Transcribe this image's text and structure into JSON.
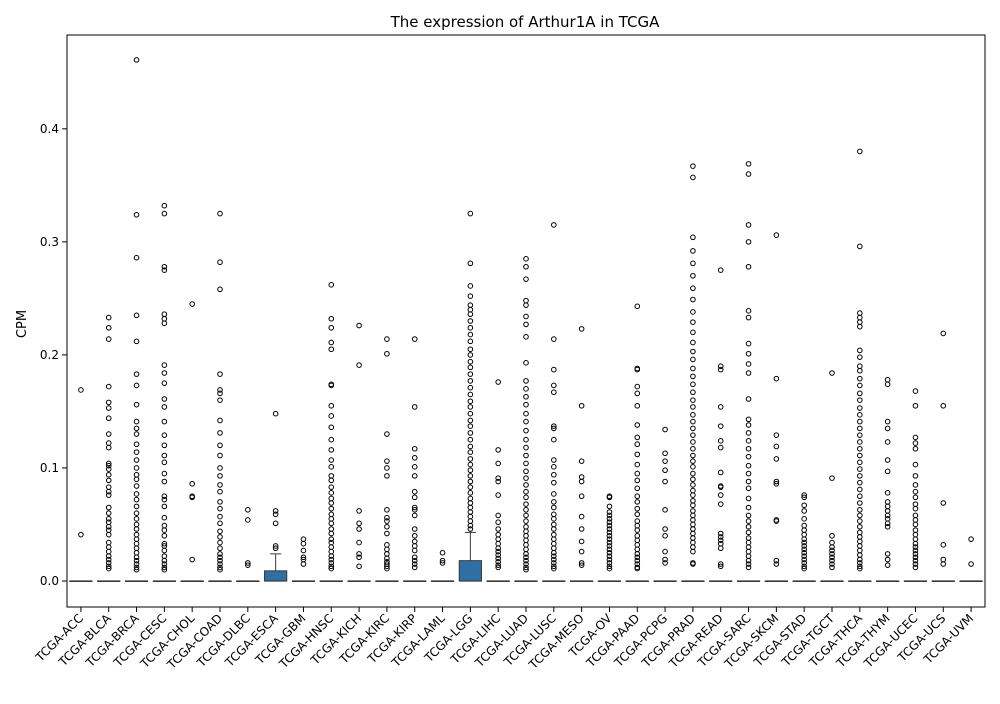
{
  "chart_data": {
    "type": "box",
    "title": "The expression of Arthur1A in TCGA",
    "xlabel": "",
    "ylabel": "CPM",
    "ylim": [
      -0.023,
      0.483
    ],
    "yticks": [
      0.0,
      0.1,
      0.2,
      0.3,
      0.4
    ],
    "ytick_labels": [
      "0.0",
      "0.1",
      "0.2",
      "0.3",
      "0.4"
    ],
    "box_color": "#2f6fa3",
    "grid": false,
    "legend": "none",
    "categories": [
      "TCGA-ACC",
      "TCGA-BLCA",
      "TCGA-BRCA",
      "TCGA-CESC",
      "TCGA-CHOL",
      "TCGA-COAD",
      "TCGA-DLBC",
      "TCGA-ESCA",
      "TCGA-GBM",
      "TCGA-HNSC",
      "TCGA-KICH",
      "TCGA-KIRC",
      "TCGA-KIRP",
      "TCGA-LAML",
      "TCGA-LGG",
      "TCGA-LIHC",
      "TCGA-LUAD",
      "TCGA-LUSC",
      "TCGA-MESO",
      "TCGA-OV",
      "TCGA-PAAD",
      "TCGA-PCPG",
      "TCGA-PRAD",
      "TCGA-READ",
      "TCGA-SARC",
      "TCGA-SKCM",
      "TCGA-STAD",
      "TCGA-TGCT",
      "TCGA-THCA",
      "TCGA-THYM",
      "TCGA-UCEC",
      "TCGA-UCS",
      "TCGA-UVM"
    ],
    "boxes": [
      {
        "q1": 0,
        "median": 0,
        "q3": 0,
        "whisker_low": 0,
        "whisker_high": 0,
        "outliers": [
          0.169,
          0.041
        ]
      },
      {
        "q1": 0,
        "median": 0,
        "q3": 0,
        "whisker_low": 0,
        "whisker_high": 0,
        "outliers": [
          0.233,
          0.224,
          0.214,
          0.172,
          0.158,
          0.153,
          0.144,
          0.13,
          0.122,
          0.118,
          0.104,
          0.102,
          0.099,
          0.094,
          0.089,
          0.083,
          0.079,
          0.076,
          0.065,
          0.06,
          0.055,
          0.052,
          0.048,
          0.045,
          0.041,
          0.034,
          0.03,
          0.026,
          0.022,
          0.019,
          0.016,
          0.013,
          0.011
        ]
      },
      {
        "q1": 0,
        "median": 0,
        "q3": 0,
        "whisker_low": 0,
        "whisker_high": 0,
        "outliers": [
          0.461,
          0.324,
          0.286,
          0.235,
          0.212,
          0.183,
          0.173,
          0.156,
          0.141,
          0.135,
          0.13,
          0.121,
          0.114,
          0.107,
          0.1,
          0.094,
          0.09,
          0.084,
          0.077,
          0.072,
          0.066,
          0.06,
          0.055,
          0.05,
          0.046,
          0.041,
          0.037,
          0.033,
          0.029,
          0.025,
          0.021,
          0.018,
          0.015,
          0.012,
          0.01
        ]
      },
      {
        "q1": 0,
        "median": 0,
        "q3": 0,
        "whisker_low": 0,
        "whisker_high": 0,
        "outliers": [
          0.332,
          0.325,
          0.278,
          0.275,
          0.236,
          0.232,
          0.228,
          0.191,
          0.184,
          0.175,
          0.161,
          0.154,
          0.141,
          0.129,
          0.12,
          0.111,
          0.105,
          0.095,
          0.088,
          0.075,
          0.072,
          0.066,
          0.056,
          0.049,
          0.045,
          0.04,
          0.033,
          0.031,
          0.027,
          0.022,
          0.018,
          0.015,
          0.012,
          0.01
        ]
      },
      {
        "q1": 0,
        "median": 0,
        "q3": 0,
        "whisker_low": 0,
        "whisker_high": 0,
        "outliers": [
          0.245,
          0.086,
          0.075,
          0.074,
          0.019
        ]
      },
      {
        "q1": 0,
        "median": 0,
        "q3": 0,
        "whisker_low": 0,
        "whisker_high": 0,
        "outliers": [
          0.325,
          0.282,
          0.258,
          0.183,
          0.169,
          0.166,
          0.16,
          0.142,
          0.131,
          0.12,
          0.111,
          0.1,
          0.093,
          0.085,
          0.079,
          0.07,
          0.064,
          0.057,
          0.051,
          0.044,
          0.039,
          0.034,
          0.029,
          0.024,
          0.021,
          0.018,
          0.015,
          0.012,
          0.01
        ]
      },
      {
        "q1": 0,
        "median": 0,
        "q3": 0,
        "whisker_low": 0,
        "whisker_high": 0,
        "outliers": [
          0.063,
          0.054,
          0.016,
          0.014
        ]
      },
      {
        "q1": 0,
        "median": 0,
        "q3": 0.009,
        "whisker_low": 0,
        "whisker_high": 0.024,
        "outliers": [
          0.148,
          0.062,
          0.059,
          0.051,
          0.031,
          0.029
        ]
      },
      {
        "q1": 0,
        "median": 0,
        "q3": 0,
        "whisker_low": 0,
        "whisker_high": 0,
        "outliers": [
          0.037,
          0.033,
          0.027,
          0.021,
          0.019,
          0.015
        ]
      },
      {
        "q1": 0,
        "median": 0,
        "q3": 0,
        "whisker_low": 0,
        "whisker_high": 0,
        "outliers": [
          0.262,
          0.232,
          0.224,
          0.211,
          0.205,
          0.174,
          0.173,
          0.155,
          0.146,
          0.136,
          0.125,
          0.116,
          0.107,
          0.101,
          0.093,
          0.089,
          0.083,
          0.078,
          0.073,
          0.069,
          0.064,
          0.059,
          0.055,
          0.051,
          0.046,
          0.042,
          0.037,
          0.034,
          0.03,
          0.026,
          0.022,
          0.019,
          0.016,
          0.013,
          0.011
        ]
      },
      {
        "q1": 0,
        "median": 0,
        "q3": 0,
        "whisker_low": 0,
        "whisker_high": 0,
        "outliers": [
          0.226,
          0.191,
          0.062,
          0.051,
          0.046,
          0.034,
          0.024,
          0.021,
          0.013
        ]
      },
      {
        "q1": 0,
        "median": 0,
        "q3": 0,
        "whisker_low": 0,
        "whisker_high": 0,
        "outliers": [
          0.214,
          0.201,
          0.13,
          0.106,
          0.1,
          0.093,
          0.063,
          0.056,
          0.053,
          0.048,
          0.042,
          0.032,
          0.028,
          0.024,
          0.02,
          0.017,
          0.015,
          0.013,
          0.011
        ]
      },
      {
        "q1": 0,
        "median": 0,
        "q3": 0,
        "whisker_low": 0,
        "whisker_high": 0,
        "outliers": [
          0.214,
          0.154,
          0.117,
          0.109,
          0.101,
          0.093,
          0.079,
          0.074,
          0.065,
          0.063,
          0.058,
          0.046,
          0.04,
          0.035,
          0.031,
          0.027,
          0.021,
          0.018,
          0.015,
          0.012
        ]
      },
      {
        "q1": 0,
        "median": 0,
        "q3": 0,
        "whisker_low": 0,
        "whisker_high": 0,
        "outliers": [
          0.025,
          0.018,
          0.016
        ]
      },
      {
        "q1": 0,
        "median": 0,
        "q3": 0.018,
        "whisker_low": 0,
        "whisker_high": 0.043,
        "outliers": [
          0.325,
          0.281,
          0.261,
          0.252,
          0.244,
          0.24,
          0.236,
          0.23,
          0.224,
          0.218,
          0.212,
          0.205,
          0.2,
          0.194,
          0.189,
          0.183,
          0.177,
          0.171,
          0.165,
          0.159,
          0.154,
          0.148,
          0.142,
          0.137,
          0.131,
          0.125,
          0.119,
          0.114,
          0.108,
          0.103,
          0.098,
          0.093,
          0.088,
          0.083,
          0.078,
          0.073,
          0.069,
          0.065,
          0.061,
          0.057,
          0.053,
          0.049,
          0.046
        ]
      },
      {
        "q1": 0,
        "median": 0,
        "q3": 0,
        "whisker_low": 0,
        "whisker_high": 0,
        "outliers": [
          0.176,
          0.116,
          0.104,
          0.091,
          0.088,
          0.076,
          0.058,
          0.052,
          0.046,
          0.041,
          0.037,
          0.033,
          0.029,
          0.026,
          0.023,
          0.02,
          0.017,
          0.014,
          0.012
        ]
      },
      {
        "q1": 0,
        "median": 0,
        "q3": 0,
        "whisker_low": 0,
        "whisker_high": 0,
        "outliers": [
          0.285,
          0.278,
          0.267,
          0.248,
          0.244,
          0.234,
          0.227,
          0.216,
          0.193,
          0.177,
          0.17,
          0.163,
          0.156,
          0.148,
          0.141,
          0.133,
          0.125,
          0.118,
          0.111,
          0.104,
          0.097,
          0.091,
          0.085,
          0.079,
          0.074,
          0.068,
          0.063,
          0.058,
          0.053,
          0.048,
          0.044,
          0.04,
          0.036,
          0.032,
          0.028,
          0.024,
          0.021,
          0.018,
          0.015,
          0.012,
          0.01
        ]
      },
      {
        "q1": 0,
        "median": 0,
        "q3": 0,
        "whisker_low": 0,
        "whisker_high": 0,
        "outliers": [
          0.315,
          0.214,
          0.187,
          0.173,
          0.167,
          0.137,
          0.135,
          0.125,
          0.107,
          0.101,
          0.094,
          0.087,
          0.077,
          0.07,
          0.065,
          0.059,
          0.055,
          0.05,
          0.046,
          0.041,
          0.037,
          0.033,
          0.029,
          0.025,
          0.022,
          0.019,
          0.016,
          0.013,
          0.011
        ]
      },
      {
        "q1": 0,
        "median": 0,
        "q3": 0,
        "whisker_low": 0,
        "whisker_high": 0,
        "outliers": [
          0.223,
          0.155,
          0.106,
          0.092,
          0.088,
          0.075,
          0.057,
          0.046,
          0.035,
          0.026,
          0.016,
          0.014
        ]
      },
      {
        "q1": 0,
        "median": 0,
        "q3": 0,
        "whisker_low": 0,
        "whisker_high": 0,
        "outliers": [
          0.075,
          0.074,
          0.066,
          0.061,
          0.058,
          0.055,
          0.052,
          0.049,
          0.046,
          0.043,
          0.04,
          0.037,
          0.034,
          0.031,
          0.028,
          0.025,
          0.022,
          0.019,
          0.016,
          0.013,
          0.011
        ]
      },
      {
        "q1": 0,
        "median": 0,
        "q3": 0,
        "whisker_low": 0,
        "whisker_high": 0,
        "outliers": [
          0.243,
          0.188,
          0.187,
          0.172,
          0.166,
          0.155,
          0.138,
          0.127,
          0.121,
          0.112,
          0.103,
          0.095,
          0.089,
          0.082,
          0.075,
          0.07,
          0.064,
          0.059,
          0.053,
          0.049,
          0.045,
          0.04,
          0.036,
          0.032,
          0.028,
          0.024,
          0.021,
          0.018,
          0.015,
          0.012,
          0.011
        ]
      },
      {
        "q1": 0,
        "median": 0,
        "q3": 0,
        "whisker_low": 0,
        "whisker_high": 0,
        "outliers": [
          0.134,
          0.113,
          0.106,
          0.098,
          0.088,
          0.063,
          0.046,
          0.04,
          0.026,
          0.019,
          0.016
        ]
      },
      {
        "q1": 0,
        "median": 0,
        "q3": 0,
        "whisker_low": 0,
        "whisker_high": 0,
        "outliers": [
          0.367,
          0.357,
          0.304,
          0.292,
          0.281,
          0.27,
          0.259,
          0.249,
          0.238,
          0.229,
          0.22,
          0.211,
          0.203,
          0.196,
          0.188,
          0.181,
          0.174,
          0.167,
          0.16,
          0.154,
          0.147,
          0.141,
          0.135,
          0.129,
          0.123,
          0.117,
          0.111,
          0.106,
          0.101,
          0.095,
          0.09,
          0.085,
          0.08,
          0.076,
          0.071,
          0.067,
          0.062,
          0.058,
          0.054,
          0.05,
          0.046,
          0.042,
          0.038,
          0.034,
          0.03,
          0.026,
          0.016,
          0.015
        ]
      },
      {
        "q1": 0,
        "median": 0,
        "q3": 0,
        "whisker_low": 0,
        "whisker_high": 0,
        "outliers": [
          0.275,
          0.19,
          0.187,
          0.154,
          0.137,
          0.124,
          0.118,
          0.096,
          0.084,
          0.083,
          0.076,
          0.068,
          0.042,
          0.039,
          0.036,
          0.033,
          0.029,
          0.015,
          0.013
        ]
      },
      {
        "q1": 0,
        "median": 0,
        "q3": 0,
        "whisker_low": 0,
        "whisker_high": 0,
        "outliers": [
          0.369,
          0.36,
          0.315,
          0.3,
          0.278,
          0.239,
          0.233,
          0.21,
          0.201,
          0.192,
          0.184,
          0.161,
          0.143,
          0.138,
          0.131,
          0.124,
          0.117,
          0.11,
          0.102,
          0.095,
          0.088,
          0.082,
          0.073,
          0.065,
          0.058,
          0.053,
          0.048,
          0.043,
          0.038,
          0.034,
          0.03,
          0.026,
          0.022,
          0.018,
          0.015,
          0.012
        ]
      },
      {
        "q1": 0,
        "median": 0,
        "q3": 0,
        "whisker_low": 0,
        "whisker_high": 0,
        "outliers": [
          0.306,
          0.179,
          0.129,
          0.119,
          0.108,
          0.088,
          0.086,
          0.054,
          0.053,
          0.018,
          0.015
        ]
      },
      {
        "q1": 0,
        "median": 0,
        "q3": 0,
        "whisker_low": 0,
        "whisker_high": 0,
        "outliers": [
          0.076,
          0.074,
          0.067,
          0.062,
          0.055,
          0.049,
          0.045,
          0.041,
          0.037,
          0.034,
          0.031,
          0.028,
          0.025,
          0.022,
          0.019,
          0.016,
          0.013,
          0.011
        ]
      },
      {
        "q1": 0,
        "median": 0,
        "q3": 0,
        "whisker_low": 0,
        "whisker_high": 0,
        "outliers": [
          0.184,
          0.091,
          0.04,
          0.034,
          0.03,
          0.027,
          0.024,
          0.021,
          0.018,
          0.015,
          0.012
        ]
      },
      {
        "q1": 0,
        "median": 0,
        "q3": 0,
        "whisker_low": 0,
        "whisker_high": 0,
        "outliers": [
          0.38,
          0.296,
          0.237,
          0.233,
          0.229,
          0.225,
          0.204,
          0.198,
          0.19,
          0.186,
          0.179,
          0.173,
          0.166,
          0.16,
          0.153,
          0.147,
          0.141,
          0.135,
          0.129,
          0.123,
          0.117,
          0.111,
          0.105,
          0.099,
          0.093,
          0.087,
          0.081,
          0.075,
          0.069,
          0.063,
          0.058,
          0.053,
          0.048,
          0.043,
          0.039,
          0.035,
          0.031,
          0.027,
          0.023,
          0.019,
          0.016,
          0.013,
          0.011
        ]
      },
      {
        "q1": 0,
        "median": 0,
        "q3": 0,
        "whisker_low": 0,
        "whisker_high": 0,
        "outliers": [
          0.178,
          0.174,
          0.141,
          0.135,
          0.123,
          0.107,
          0.097,
          0.078,
          0.07,
          0.066,
          0.062,
          0.058,
          0.055,
          0.051,
          0.048,
          0.024,
          0.019,
          0.014
        ]
      },
      {
        "q1": 0,
        "median": 0,
        "q3": 0,
        "whisker_low": 0,
        "whisker_high": 0,
        "outliers": [
          0.168,
          0.155,
          0.127,
          0.122,
          0.117,
          0.103,
          0.093,
          0.085,
          0.079,
          0.074,
          0.068,
          0.064,
          0.058,
          0.054,
          0.05,
          0.045,
          0.041,
          0.037,
          0.033,
          0.03,
          0.027,
          0.024,
          0.021,
          0.018,
          0.015,
          0.012
        ]
      },
      {
        "q1": 0,
        "median": 0,
        "q3": 0,
        "whisker_low": 0,
        "whisker_high": 0,
        "outliers": [
          0.219,
          0.155,
          0.069,
          0.032,
          0.019,
          0.015
        ]
      },
      {
        "q1": 0,
        "median": 0,
        "q3": 0,
        "whisker_low": 0,
        "whisker_high": 0,
        "outliers": [
          0.037,
          0.015
        ]
      }
    ]
  }
}
